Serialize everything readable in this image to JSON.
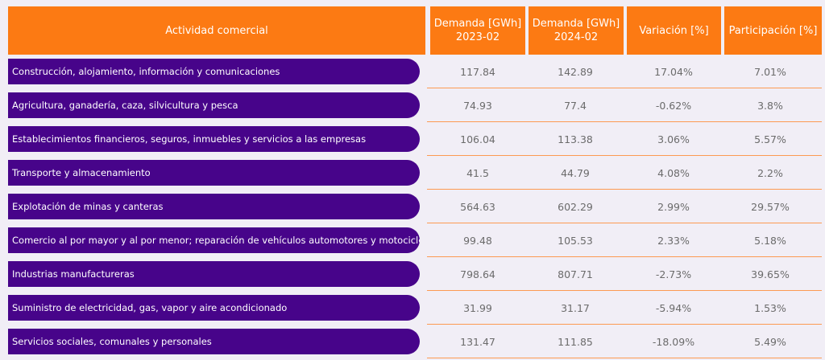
{
  "headers": {
    "activity": "Actividad comercial",
    "demand_2023": [
      "Demanda [GWh]",
      "2023-02"
    ],
    "demand_2024": [
      "Demanda [GWh]",
      "2024-02"
    ],
    "variation": "Variación [%]",
    "participation": "Participación [%]"
  },
  "rows": [
    {
      "activity": "Construcción, alojamiento, información y comunicaciones",
      "d2023": "117.84",
      "d2024": "142.89",
      "variation": "17.04%",
      "participation": "7.01%"
    },
    {
      "activity": "Agricultura, ganadería, caza, silvicultura y pesca",
      "d2023": "74.93",
      "d2024": "77.4",
      "variation": "-0.62%",
      "participation": "3.8%"
    },
    {
      "activity": "Establecimientos financieros, seguros, inmuebles y servicios a las empresas",
      "d2023": "106.04",
      "d2024": "113.38",
      "variation": "3.06%",
      "participation": "5.57%"
    },
    {
      "activity": "Transporte y almacenamiento",
      "d2023": "41.5",
      "d2024": "44.79",
      "variation": "4.08%",
      "participation": "2.2%"
    },
    {
      "activity": "Explotación de minas y canteras",
      "d2023": "564.63",
      "d2024": "602.29",
      "variation": "2.99%",
      "participation": "29.57%"
    },
    {
      "activity": "Comercio al por mayor y al por menor; reparación de vehículos automotores y motocicletas",
      "d2023": "99.48",
      "d2024": "105.53",
      "variation": "2.33%",
      "participation": "5.18%"
    },
    {
      "activity": "Industrias manufactureras",
      "d2023": "798.64",
      "d2024": "807.71",
      "variation": "-2.73%",
      "participation": "39.65%"
    },
    {
      "activity": "Suministro de electricidad, gas, vapor y aire acondicionado",
      "d2023": "31.99",
      "d2024": "31.17",
      "variation": "-5.94%",
      "participation": "1.53%"
    },
    {
      "activity": "Servicios sociales, comunales y personales",
      "d2023": "131.47",
      "d2024": "111.85",
      "variation": "-18.09%",
      "participation": "5.49%"
    }
  ],
  "colors": {
    "header": "#fc7a13",
    "label": "#47048a",
    "background": "#f1eef6"
  }
}
